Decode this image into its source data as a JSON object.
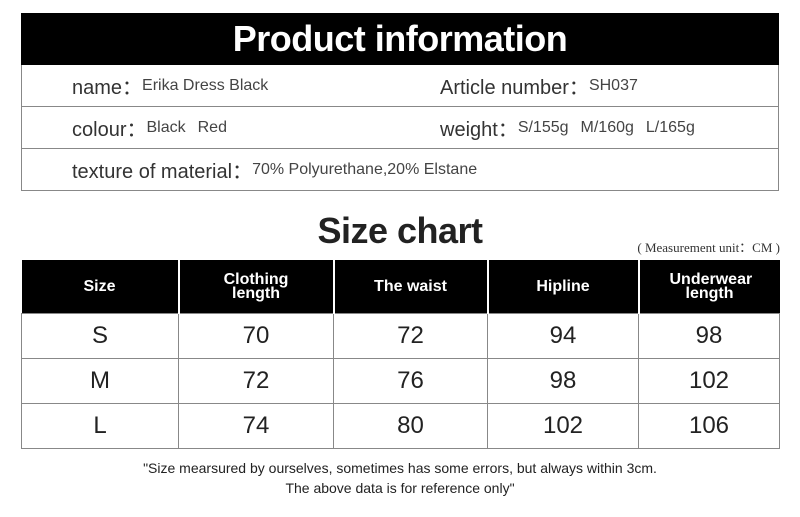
{
  "product_info": {
    "title": "Product information",
    "name": {
      "label": "name：",
      "value": "Erika Dress Black"
    },
    "article": {
      "label": "Article number：",
      "value": "SH037"
    },
    "colour": {
      "label": "colour：",
      "values": [
        "Black",
        "Red"
      ]
    },
    "weight": {
      "label": "weight：",
      "values": [
        "S/155g",
        "M/160g",
        "L/165g"
      ]
    },
    "texture": {
      "label": "texture of material：",
      "value": "70% Polyurethane,20% Elstane"
    }
  },
  "size_chart": {
    "title": "Size chart",
    "unit_note": "( Measurement unit：CM )",
    "header": [
      "Size",
      "Clothing length",
      "The waist",
      "Hipline",
      "Underwear length"
    ],
    "rows": [
      [
        "S",
        70,
        72,
        94,
        98
      ],
      [
        "M",
        72,
        76,
        98,
        102
      ],
      [
        "L",
        74,
        80,
        102,
        106
      ]
    ],
    "footnote": [
      "\"Size mearsured by ourselves, sometimes has some errors, but always within 3cm.",
      "The above data is for reference only\""
    ]
  }
}
